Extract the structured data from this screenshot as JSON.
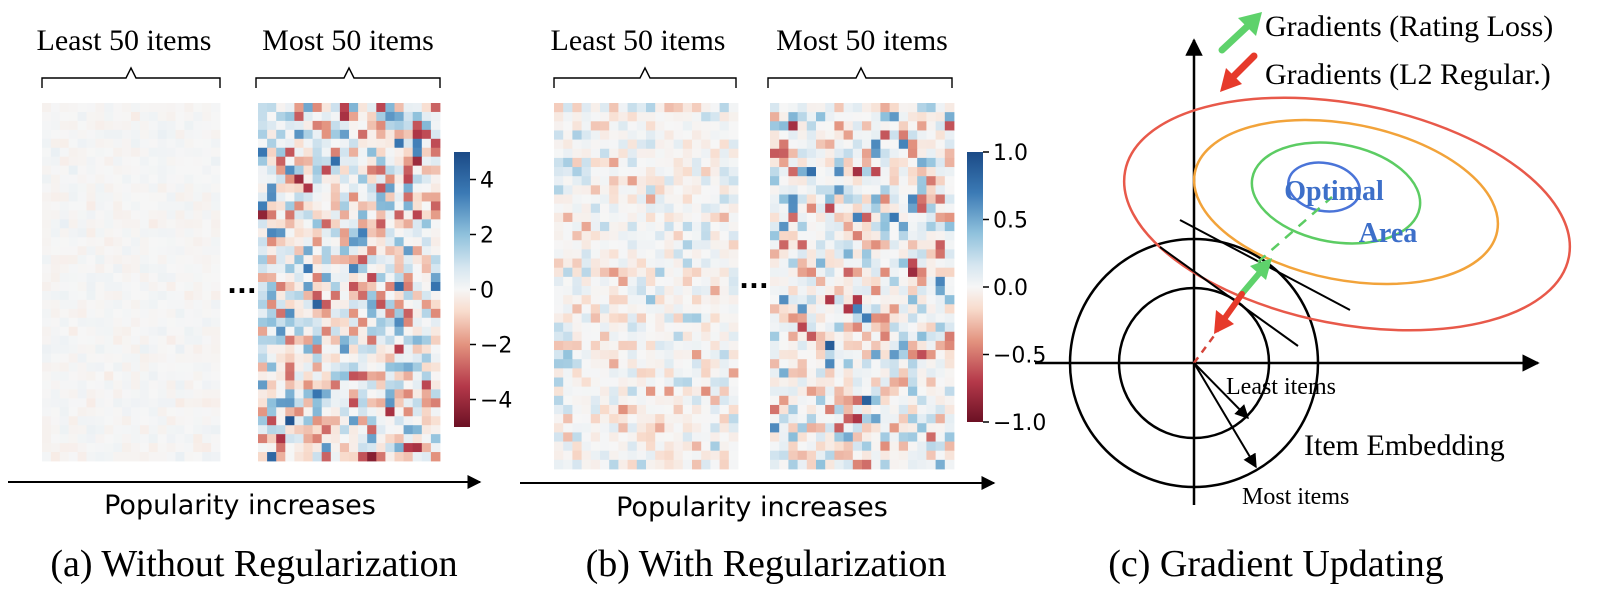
{
  "panel_a": {
    "label_least": "Least 50 items",
    "label_most": "Most 50 items",
    "ellipsis": "...",
    "axis_label": "Popularity increases",
    "caption": "(a) Without Regularization",
    "colorbar": {
      "range": [
        -5,
        5
      ],
      "ticks": [
        "4",
        "2",
        "0",
        "−2",
        "−4"
      ],
      "tick_values": [
        4,
        2,
        0,
        -2,
        -4
      ]
    },
    "heatmap_least": {
      "rows": 40,
      "cols": 20,
      "spread": 0.35,
      "sparsity": 0.0
    },
    "heatmap_most": {
      "rows": 40,
      "cols": 20,
      "spread": 5.0,
      "sparsity": 0.15
    }
  },
  "panel_b": {
    "label_least": "Least 50 items",
    "label_most": "Most 50 items",
    "ellipsis": "...",
    "axis_label": "Popularity increases",
    "caption": "(b) With Regularization",
    "colorbar": {
      "range": [
        -1,
        1
      ],
      "ticks": [
        "1.0",
        "0.5",
        "0.0",
        "−0.5",
        "−1.0"
      ],
      "tick_values": [
        1,
        0.5,
        0,
        -0.5,
        -1
      ]
    },
    "heatmap_least": {
      "rows": 40,
      "cols": 20,
      "spread": 0.45,
      "sparsity": 0.3
    },
    "heatmap_most": {
      "rows": 40,
      "cols": 20,
      "spread": 1.0,
      "sparsity": 0.35
    }
  },
  "panel_c": {
    "legend_green": "Gradients (Rating Loss)",
    "legend_red": "Gradients (L2 Regular.)",
    "optimal_line1": "Optimal",
    "optimal_line2": "Area",
    "least_items": "Least items",
    "most_items": "Most items",
    "item_embedding": "Item Embedding",
    "caption": "(c) Gradient Updating"
  },
  "colors": {
    "green": "#5ed26b",
    "red": "#e63a2b",
    "blue": "#4a74d8",
    "orange": "#f2a33a",
    "ellipse_red": "#e8594a",
    "ellipse_green": "#5ccc63",
    "optimal_text": "#3d6fc9",
    "cmap_neg": "#6b1124",
    "cmap_pos": "#1b4a86"
  }
}
